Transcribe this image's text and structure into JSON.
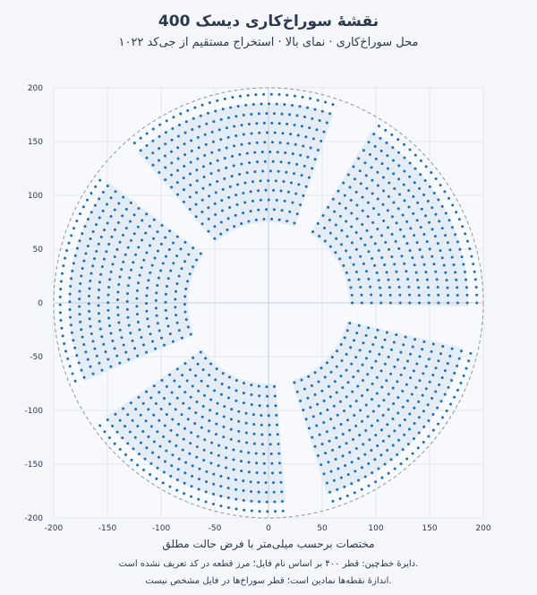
{
  "header": {
    "title": "نقشهٔ سوراخ‌کاری دیسک 400",
    "subtitle": "۱۰۲۲ محل سوراخ‌کاری · نمای بالا · استخراج مستقیم از جی‌کد"
  },
  "footer": {
    "xlabel": "مختصات برحسب میلی‌متر با فرض حالت مطلق",
    "note1": "دایرهٔ خط‌چین: قطر ۴۰۰ بر اساس نام فایل؛ مرز قطعه در کد تعریف نشده است.",
    "note2": "اندازهٔ نقطه‌ها نمادین است؛ قطر سوراخ‌ها در فایل مشخص نیست."
  },
  "colors": {
    "point": "#1f6fb5",
    "sector_fill": "#e4ecf6",
    "grid": "#e2e7ef",
    "boundary": "#8a97a8",
    "background": "#f4f6fa",
    "plot_background": "#f8f9fc"
  },
  "chart_data": {
    "type": "scatter",
    "xlim": [
      -200,
      200
    ],
    "ylim": [
      -200,
      200
    ],
    "x_ticks": [
      -200,
      -150,
      -100,
      -50,
      0,
      50,
      100,
      150,
      200
    ],
    "y_ticks": [
      -200,
      -150,
      -100,
      -50,
      0,
      50,
      100,
      150,
      200
    ],
    "grid": true,
    "aspect": "equal",
    "total_points": 1022,
    "boundary_circle": {
      "center": [
        0,
        0
      ],
      "radius": 200,
      "style": "dashed"
    },
    "pattern": {
      "description": "polar array in 5 sectors",
      "sectors": 5,
      "start_angle_deg": 0,
      "sector_span_deg": 58,
      "gap_span_deg": 14,
      "ring_inner_radius": 78,
      "ring_outer_radius": 194,
      "ring_count": 14
    }
  }
}
